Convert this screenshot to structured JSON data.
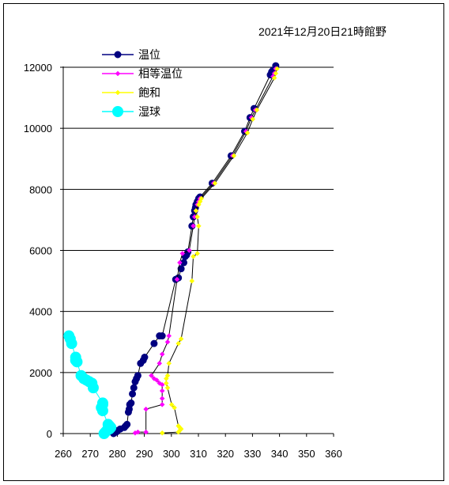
{
  "chart_data": {
    "type": "scatter",
    "title": "2021年12月20日21時館野",
    "xlim": [
      260,
      360
    ],
    "ylim": [
      0,
      12000
    ],
    "x_ticks": [
      "260",
      "270",
      "280",
      "290",
      "300",
      "310",
      "320",
      "330",
      "340",
      "350",
      "360"
    ],
    "y_ticks": [
      "0",
      "2000",
      "4000",
      "6000",
      "8000",
      "10000",
      "12000"
    ],
    "grid": "horizontal",
    "legend_position": "top-left",
    "series": [
      {
        "name": "温位",
        "color": "#000080",
        "marker": "circle-large",
        "points": [
          [
            278.6,
            0
          ],
          [
            279.6,
            50
          ],
          [
            280.1,
            100
          ],
          [
            281.1,
            150
          ],
          [
            282.6,
            200
          ],
          [
            283.1,
            250
          ],
          [
            283.6,
            300
          ],
          [
            284.1,
            700
          ],
          [
            284.4,
            800
          ],
          [
            284.6,
            950
          ],
          [
            285.1,
            1000
          ],
          [
            285.6,
            1300
          ],
          [
            286.1,
            1500
          ],
          [
            286.6,
            1700
          ],
          [
            287.1,
            1800
          ],
          [
            287.6,
            1900
          ],
          [
            288.6,
            2300
          ],
          [
            289.6,
            2400
          ],
          [
            290.1,
            2500
          ],
          [
            293.6,
            2950
          ],
          [
            295.6,
            3200
          ],
          [
            296.6,
            3200
          ],
          [
            301.6,
            5050
          ],
          [
            302.6,
            5100
          ],
          [
            303.6,
            5400
          ],
          [
            304.6,
            5600
          ],
          [
            305.1,
            5800
          ],
          [
            305.6,
            5850
          ],
          [
            306.1,
            5950
          ],
          [
            307.6,
            6800
          ],
          [
            308.1,
            7100
          ],
          [
            308.6,
            7300
          ],
          [
            308.9,
            7400
          ],
          [
            309.1,
            7500
          ],
          [
            309.6,
            7600
          ],
          [
            310.1,
            7700
          ],
          [
            310.6,
            7750
          ],
          [
            315.1,
            8200
          ],
          [
            322.1,
            9100
          ],
          [
            327.1,
            9900
          ],
          [
            329.1,
            10350
          ],
          [
            330.6,
            10650
          ],
          [
            336.6,
            11750
          ],
          [
            337.1,
            11850
          ],
          [
            337.6,
            11900
          ],
          [
            338.6,
            12050
          ]
        ]
      },
      {
        "name": "相等温位",
        "color": "#ff00ff",
        "marker": "diamond",
        "points": [
          [
            286.6,
            20
          ],
          [
            287.6,
            50
          ],
          [
            290.6,
            50
          ],
          [
            290.6,
            800
          ],
          [
            296.6,
            950
          ],
          [
            296.6,
            1150
          ],
          [
            296.6,
            1400
          ],
          [
            296.6,
            1600
          ],
          [
            295.6,
            1650
          ],
          [
            294.6,
            1750
          ],
          [
            293.6,
            1800
          ],
          [
            292.6,
            1900
          ],
          [
            295.6,
            2300
          ],
          [
            296.6,
            2600
          ],
          [
            298.6,
            3000
          ],
          [
            299.1,
            3200
          ],
          [
            302.1,
            5050
          ],
          [
            303.1,
            5600
          ],
          [
            304.1,
            5900
          ],
          [
            306.6,
            6000
          ],
          [
            308.1,
            6800
          ],
          [
            308.6,
            7100
          ],
          [
            309.1,
            7300
          ],
          [
            309.6,
            7500
          ],
          [
            310.1,
            7600
          ],
          [
            310.6,
            7700
          ],
          [
            315.6,
            8200
          ],
          [
            322.6,
            9100
          ],
          [
            327.6,
            9900
          ],
          [
            329.6,
            10350
          ],
          [
            331.1,
            10600
          ],
          [
            337.6,
            11700
          ],
          [
            338.1,
            11800
          ],
          [
            338.6,
            11950
          ]
        ]
      },
      {
        "name": "飽和",
        "color": "#ffff00",
        "marker": "diamond",
        "points": [
          [
            296.6,
            20
          ],
          [
            302.6,
            50
          ],
          [
            303.1,
            100
          ],
          [
            303.6,
            150
          ],
          [
            303.1,
            200
          ],
          [
            302.6,
            250
          ],
          [
            301.1,
            850
          ],
          [
            300.1,
            950
          ],
          [
            298.6,
            1500
          ],
          [
            298.1,
            1650
          ],
          [
            298.1,
            1800
          ],
          [
            298.6,
            1900
          ],
          [
            299.1,
            2300
          ],
          [
            302.6,
            2950
          ],
          [
            303.6,
            3100
          ],
          [
            307.6,
            5000
          ],
          [
            308.1,
            5800
          ],
          [
            309.6,
            5900
          ],
          [
            310.1,
            6800
          ],
          [
            309.6,
            7100
          ],
          [
            309.1,
            7300
          ],
          [
            310.1,
            7500
          ],
          [
            310.6,
            7600
          ],
          [
            311.1,
            7700
          ],
          [
            316.1,
            8200
          ],
          [
            323.1,
            9100
          ],
          [
            328.1,
            9850
          ],
          [
            330.1,
            10300
          ],
          [
            331.6,
            10600
          ],
          [
            338.1,
            11650
          ],
          [
            338.6,
            11800
          ],
          [
            339.1,
            11950
          ]
        ]
      },
      {
        "name": "湿球",
        "color": "#00ffff",
        "marker": "circle-xlarge",
        "points": [
          [
            275.1,
            0
          ],
          [
            275.6,
            50
          ],
          [
            276.1,
            100
          ],
          [
            277.1,
            150
          ],
          [
            277.6,
            200
          ],
          [
            277.1,
            250
          ],
          [
            276.6,
            300
          ],
          [
            274.6,
            750
          ],
          [
            274.1,
            850
          ],
          [
            274.6,
            950
          ],
          [
            274.6,
            1000
          ],
          [
            271.1,
            1500
          ],
          [
            270.6,
            1650
          ],
          [
            269.6,
            1700
          ],
          [
            268.6,
            1750
          ],
          [
            267.6,
            1800
          ],
          [
            266.6,
            1900
          ],
          [
            265.1,
            2350
          ],
          [
            264.6,
            2400
          ],
          [
            264.6,
            2500
          ],
          [
            263.1,
            2950
          ],
          [
            262.6,
            3100
          ],
          [
            262.1,
            3200
          ]
        ]
      }
    ]
  }
}
